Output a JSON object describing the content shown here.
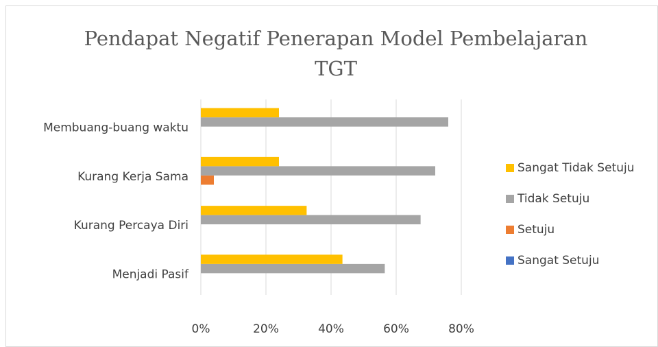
{
  "chart_data": {
    "type": "bar",
    "orientation": "horizontal",
    "title": "Pendapat Negatif Penerapan Model Pembelajaran TGT",
    "categories": [
      "Menjadi Pasif",
      "Kurang Percaya Diri",
      "Kurang Kerja Sama",
      "Membuang-buang waktu"
    ],
    "series": [
      {
        "name": "Sangat Setuju",
        "color": "#4472c4",
        "values": [
          0,
          0,
          0,
          0
        ]
      },
      {
        "name": "Setuju",
        "color": "#ed7d31",
        "values": [
          0,
          0,
          4,
          0
        ]
      },
      {
        "name": "Tidak Setuju",
        "color": "#a5a5a5",
        "values": [
          56.5,
          67.5,
          72,
          76
        ]
      },
      {
        "name": "Sangat Tidak Setuju",
        "color": "#ffc000",
        "values": [
          43.5,
          32.5,
          24,
          24
        ]
      }
    ],
    "xlim": [
      0,
      80
    ],
    "xticks": [
      {
        "value": 0,
        "label": "0%"
      },
      {
        "value": 20,
        "label": "20%"
      },
      {
        "value": 40,
        "label": "40%"
      },
      {
        "value": 60,
        "label": "60%"
      },
      {
        "value": 80,
        "label": "80%"
      }
    ],
    "grid": true,
    "legend": "right"
  }
}
